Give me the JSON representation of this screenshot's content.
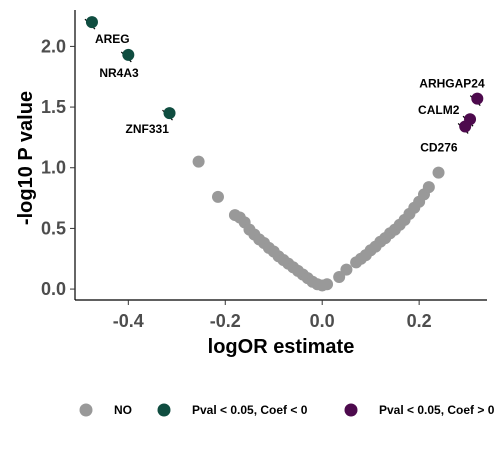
{
  "chart_data": {
    "type": "scatter",
    "title": "",
    "xlabel": "logOR estimate",
    "ylabel": "-log10 P value",
    "xlim": [
      -0.51,
      0.34
    ],
    "ylim": [
      -0.09,
      2.3
    ],
    "x_ticks": [
      -0.4,
      -0.2,
      0.0,
      0.2
    ],
    "x_tick_labels": [
      "-0.4",
      "-0.2",
      "0.0",
      "0.2"
    ],
    "y_ticks": [
      0.0,
      0.5,
      1.0,
      1.5,
      2.0
    ],
    "y_tick_labels": [
      "0.0",
      "0.5",
      "1.0",
      "1.5",
      "2.0"
    ],
    "grid": false,
    "legend_position": "bottom",
    "series": [
      {
        "name": "NO",
        "color": "#999999",
        "points": [
          {
            "x": -0.255,
            "y": 1.05
          },
          {
            "x": -0.215,
            "y": 0.76
          },
          {
            "x": -0.18,
            "y": 0.61
          },
          {
            "x": -0.17,
            "y": 0.59
          },
          {
            "x": -0.16,
            "y": 0.55
          },
          {
            "x": -0.15,
            "y": 0.49
          },
          {
            "x": -0.14,
            "y": 0.45
          },
          {
            "x": -0.13,
            "y": 0.41
          },
          {
            "x": -0.12,
            "y": 0.38
          },
          {
            "x": -0.11,
            "y": 0.34
          },
          {
            "x": -0.1,
            "y": 0.31
          },
          {
            "x": -0.09,
            "y": 0.27
          },
          {
            "x": -0.08,
            "y": 0.24
          },
          {
            "x": -0.07,
            "y": 0.21
          },
          {
            "x": -0.06,
            "y": 0.18
          },
          {
            "x": -0.05,
            "y": 0.15
          },
          {
            "x": -0.04,
            "y": 0.12
          },
          {
            "x": -0.03,
            "y": 0.09
          },
          {
            "x": -0.02,
            "y": 0.06
          },
          {
            "x": -0.01,
            "y": 0.04
          },
          {
            "x": 0.0,
            "y": 0.03
          },
          {
            "x": 0.01,
            "y": 0.04
          },
          {
            "x": 0.035,
            "y": 0.1
          },
          {
            "x": 0.05,
            "y": 0.16
          },
          {
            "x": 0.07,
            "y": 0.22
          },
          {
            "x": 0.08,
            "y": 0.25
          },
          {
            "x": 0.09,
            "y": 0.28
          },
          {
            "x": 0.1,
            "y": 0.32
          },
          {
            "x": 0.11,
            "y": 0.35
          },
          {
            "x": 0.12,
            "y": 0.39
          },
          {
            "x": 0.13,
            "y": 0.42
          },
          {
            "x": 0.14,
            "y": 0.46
          },
          {
            "x": 0.15,
            "y": 0.49
          },
          {
            "x": 0.16,
            "y": 0.53
          },
          {
            "x": 0.17,
            "y": 0.57
          },
          {
            "x": 0.18,
            "y": 0.62
          },
          {
            "x": 0.19,
            "y": 0.67
          },
          {
            "x": 0.2,
            "y": 0.72
          },
          {
            "x": 0.21,
            "y": 0.78
          },
          {
            "x": 0.22,
            "y": 0.84
          },
          {
            "x": 0.24,
            "y": 0.96
          }
        ]
      },
      {
        "name": "Pval < 0.05, Coef < 0",
        "color": "#0f4d40",
        "points": [
          {
            "x": -0.475,
            "y": 2.2,
            "label": "AREG"
          },
          {
            "x": -0.4,
            "y": 1.93,
            "label": "NR4A3"
          },
          {
            "x": -0.315,
            "y": 1.45,
            "label": "ZNF331"
          }
        ]
      },
      {
        "name": "Pval < 0.05, Coef > 0",
        "color": "#4d0a4d",
        "points": [
          {
            "x": 0.32,
            "y": 1.57,
            "label": "ARHGAP24"
          },
          {
            "x": 0.305,
            "y": 1.4,
            "label": "CALM2"
          },
          {
            "x": 0.295,
            "y": 1.34,
            "label": "CD276"
          }
        ]
      }
    ]
  }
}
